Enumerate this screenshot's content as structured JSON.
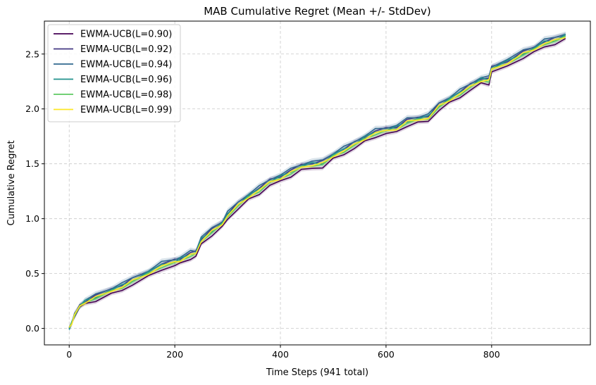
{
  "chart_data": {
    "type": "line",
    "title": "MAB Cumulative Regret (Mean +/- StdDev)",
    "xlabel": "Time Steps (941 total)",
    "ylabel": "Cumulative Regret",
    "xlim": [
      -47,
      987
    ],
    "ylim": [
      -0.15,
      2.8
    ],
    "xticks": [
      0,
      200,
      400,
      600,
      800
    ],
    "yticks": [
      0.0,
      0.5,
      1.0,
      1.5,
      2.0,
      2.5
    ],
    "xtick_labels": [
      "0",
      "200",
      "400",
      "600",
      "800"
    ],
    "ytick_labels": [
      "0.0",
      "0.5",
      "1.0",
      "1.5",
      "2.0",
      "2.5"
    ],
    "grid": true,
    "legend_position": "upper-left",
    "x": [
      0,
      5,
      10,
      20,
      30,
      50,
      80,
      100,
      120,
      150,
      175,
      200,
      210,
      230,
      240,
      250,
      270,
      290,
      300,
      320,
      340,
      360,
      380,
      400,
      420,
      440,
      460,
      480,
      500,
      520,
      540,
      560,
      580,
      600,
      620,
      640,
      660,
      680,
      700,
      720,
      740,
      760,
      780,
      795,
      800,
      830,
      860,
      880,
      900,
      920,
      940
    ],
    "series": [
      {
        "name": "EWMA-UCB(L=0.90)",
        "color": "#440154",
        "offset": -0.03,
        "band": 0.02,
        "values": [
          0.0,
          0.05,
          0.12,
          0.2,
          0.24,
          0.28,
          0.34,
          0.38,
          0.43,
          0.5,
          0.57,
          0.6,
          0.62,
          0.67,
          0.68,
          0.8,
          0.88,
          0.95,
          1.03,
          1.12,
          1.2,
          1.26,
          1.33,
          1.37,
          1.42,
          1.47,
          1.49,
          1.5,
          1.57,
          1.62,
          1.67,
          1.73,
          1.78,
          1.8,
          1.82,
          1.88,
          1.9,
          1.92,
          2.02,
          2.08,
          2.14,
          2.2,
          2.26,
          2.26,
          2.36,
          2.42,
          2.5,
          2.54,
          2.6,
          2.62,
          2.66
        ]
      },
      {
        "name": "EWMA-UCB(L=0.92)",
        "color": "#443983",
        "offset": 0.02,
        "band": 0.02,
        "values": [
          0.0,
          0.05,
          0.12,
          0.2,
          0.24,
          0.28,
          0.34,
          0.38,
          0.43,
          0.5,
          0.57,
          0.6,
          0.62,
          0.67,
          0.68,
          0.8,
          0.88,
          0.95,
          1.03,
          1.12,
          1.2,
          1.26,
          1.33,
          1.37,
          1.42,
          1.47,
          1.49,
          1.5,
          1.57,
          1.62,
          1.67,
          1.73,
          1.78,
          1.8,
          1.82,
          1.88,
          1.9,
          1.92,
          2.02,
          2.08,
          2.14,
          2.2,
          2.26,
          2.26,
          2.36,
          2.42,
          2.5,
          2.54,
          2.6,
          2.62,
          2.66
        ]
      },
      {
        "name": "EWMA-UCB(L=0.94)",
        "color": "#31688e",
        "offset": 0.03,
        "band": 0.025,
        "values": [
          0.0,
          0.05,
          0.12,
          0.2,
          0.24,
          0.28,
          0.34,
          0.38,
          0.43,
          0.5,
          0.57,
          0.6,
          0.62,
          0.67,
          0.68,
          0.8,
          0.88,
          0.95,
          1.03,
          1.12,
          1.2,
          1.26,
          1.33,
          1.37,
          1.42,
          1.47,
          1.49,
          1.5,
          1.57,
          1.62,
          1.67,
          1.73,
          1.78,
          1.8,
          1.82,
          1.88,
          1.9,
          1.92,
          2.02,
          2.08,
          2.14,
          2.2,
          2.26,
          2.26,
          2.36,
          2.42,
          2.5,
          2.54,
          2.6,
          2.62,
          2.66
        ]
      },
      {
        "name": "EWMA-UCB(L=0.96)",
        "color": "#21918c",
        "offset": 0.01,
        "band": 0.02,
        "values": [
          0.0,
          0.05,
          0.12,
          0.2,
          0.24,
          0.28,
          0.34,
          0.38,
          0.43,
          0.5,
          0.57,
          0.6,
          0.62,
          0.67,
          0.68,
          0.8,
          0.88,
          0.95,
          1.03,
          1.12,
          1.2,
          1.26,
          1.33,
          1.37,
          1.42,
          1.47,
          1.49,
          1.5,
          1.57,
          1.62,
          1.67,
          1.73,
          1.78,
          1.8,
          1.82,
          1.88,
          1.9,
          1.92,
          2.02,
          2.08,
          2.14,
          2.2,
          2.26,
          2.26,
          2.36,
          2.42,
          2.5,
          2.54,
          2.6,
          2.62,
          2.66
        ]
      },
      {
        "name": "EWMA-UCB(L=0.98)",
        "color": "#5ec962",
        "offset": -0.005,
        "band": 0.02,
        "values": [
          0.0,
          0.05,
          0.12,
          0.2,
          0.24,
          0.28,
          0.34,
          0.38,
          0.43,
          0.5,
          0.57,
          0.6,
          0.62,
          0.67,
          0.68,
          0.8,
          0.88,
          0.95,
          1.03,
          1.12,
          1.2,
          1.26,
          1.33,
          1.37,
          1.42,
          1.47,
          1.49,
          1.5,
          1.57,
          1.62,
          1.67,
          1.73,
          1.78,
          1.8,
          1.82,
          1.88,
          1.9,
          1.92,
          2.02,
          2.08,
          2.14,
          2.2,
          2.26,
          2.26,
          2.36,
          2.42,
          2.5,
          2.54,
          2.6,
          2.62,
          2.66
        ]
      },
      {
        "name": "EWMA-UCB(L=0.99)",
        "color": "#fde725",
        "offset": 0.0,
        "band": 0.02,
        "values": [
          0.0,
          0.05,
          0.12,
          0.2,
          0.24,
          0.28,
          0.34,
          0.38,
          0.43,
          0.5,
          0.57,
          0.6,
          0.62,
          0.67,
          0.68,
          0.8,
          0.88,
          0.95,
          1.03,
          1.12,
          1.2,
          1.26,
          1.33,
          1.37,
          1.42,
          1.47,
          1.49,
          1.5,
          1.57,
          1.62,
          1.67,
          1.73,
          1.78,
          1.8,
          1.82,
          1.88,
          1.9,
          1.92,
          2.02,
          2.08,
          2.14,
          2.2,
          2.26,
          2.26,
          2.36,
          2.42,
          2.5,
          2.54,
          2.6,
          2.62,
          2.66
        ]
      }
    ]
  }
}
